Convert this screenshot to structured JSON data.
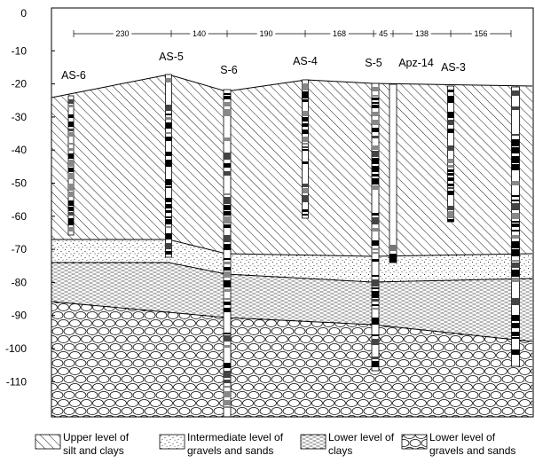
{
  "y_axis": {
    "ticks": [
      "0",
      "-10",
      "-20",
      "-30",
      "-40",
      "-50",
      "-60",
      "-70",
      "-80",
      "-90",
      "-100",
      "-110"
    ]
  },
  "spacing": [
    "230",
    "140",
    "190",
    "168",
    "45",
    "138",
    "156"
  ],
  "wells": [
    {
      "name": "AS-6"
    },
    {
      "name": "AS-5"
    },
    {
      "name": "S-6"
    },
    {
      "name": "AS-4"
    },
    {
      "name": "S-5"
    },
    {
      "name": "Apz-14"
    },
    {
      "name": "AS-3"
    },
    {
      "name": ""
    }
  ],
  "legend": [
    {
      "line1": "Upper level of",
      "line2": "silt and clays",
      "pattern": "diagonal-hatch"
    },
    {
      "line1": "Intermediate level of",
      "line2": "gravels and sands",
      "pattern": "dots"
    },
    {
      "line1": "Lower level of",
      "line2": "clays",
      "pattern": "dashes"
    },
    {
      "line1": "Lower level of",
      "line2": "gravels and sands",
      "pattern": "pebbles"
    }
  ],
  "colors": {
    "ink": "#000000",
    "paper": "#ffffff"
  }
}
